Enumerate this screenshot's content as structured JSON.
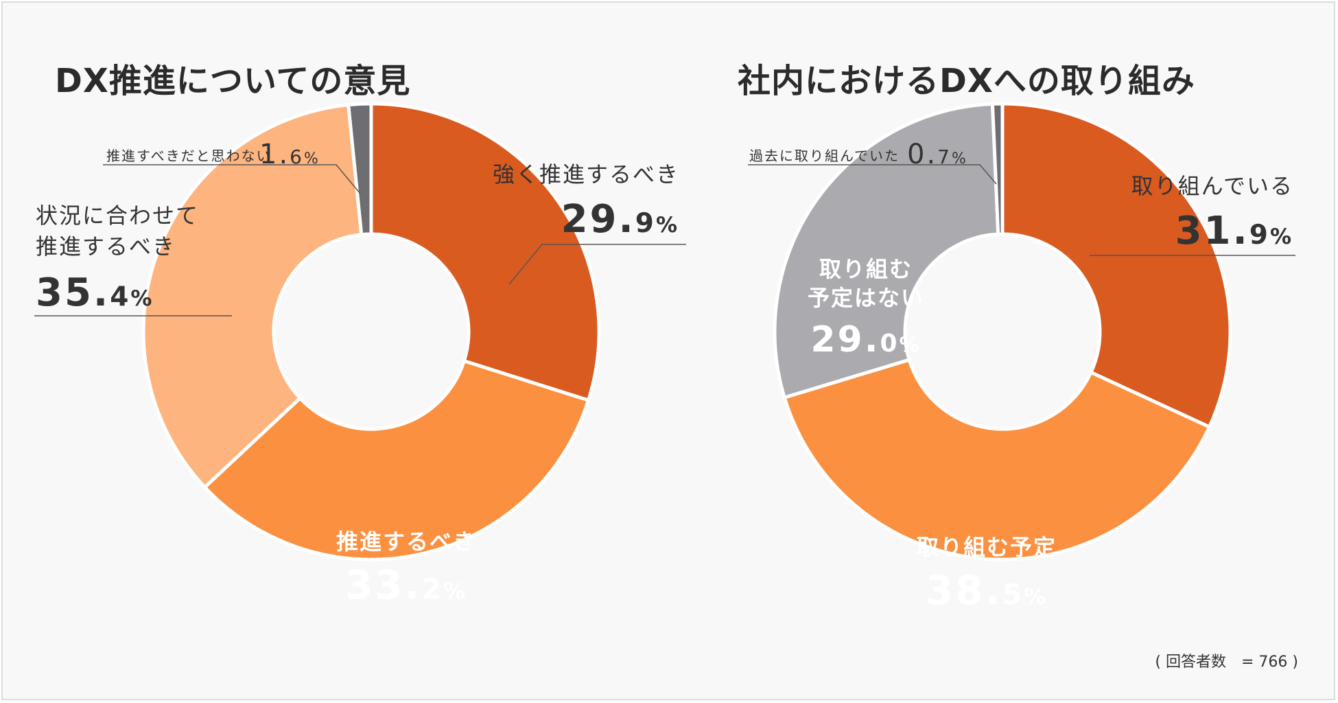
{
  "chart_data": [
    {
      "type": "pie",
      "title": "DX推進についての意見",
      "slices": [
        {
          "label": "強く推進するべき",
          "value": 29.9,
          "num": "29.",
          "dec": "9",
          "color": "#d95b20"
        },
        {
          "label": "推進するべき",
          "value": 33.2,
          "num": "33.",
          "dec": "2",
          "color": "#fb9040"
        },
        {
          "label": "状況に合わせて\n推進するべき",
          "value": 35.4,
          "num": "35.",
          "dec": "4",
          "color": "#fdb47e"
        },
        {
          "label": "推進すべきだと思わない",
          "value": 1.6,
          "num": "1.",
          "dec": "6",
          "color": "#6e6e72"
        }
      ]
    },
    {
      "type": "pie",
      "title": "社内におけるDXへの取り組み",
      "slices": [
        {
          "label": "取り組んでいる",
          "value": 31.9,
          "num": "31.",
          "dec": "9",
          "color": "#d95b20"
        },
        {
          "label": "取り組む予定",
          "value": 38.5,
          "num": "38.",
          "dec": "5",
          "color": "#fb9040"
        },
        {
          "label": "取り組む\n予定はない",
          "value": 29.0,
          "num": "29.",
          "dec": "0",
          "color": "#ababaf"
        },
        {
          "label": "過去に取り組んでいた",
          "value": 0.7,
          "num": "0.",
          "dec": "7",
          "color": "#6e6e72"
        }
      ]
    }
  ],
  "percent_sign": "%",
  "footnote": "( 回答者数　= 766 )"
}
